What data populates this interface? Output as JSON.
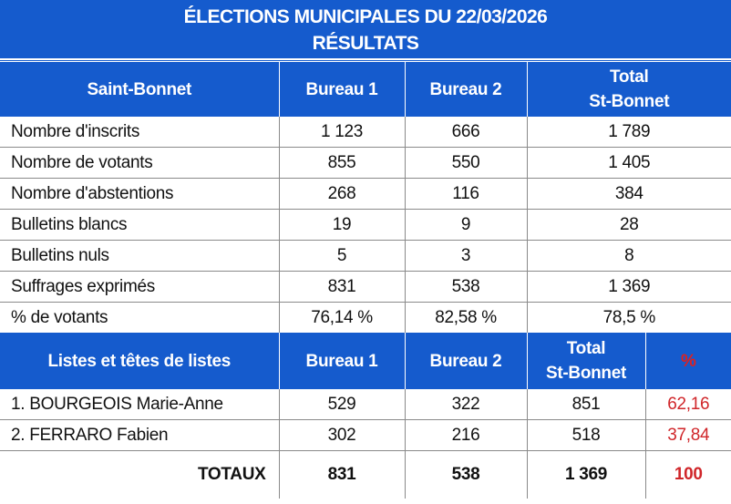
{
  "title": {
    "line1": "ÉLECTIONS MUNICIPALES DU 22/03/2026",
    "line2": "RÉSULTATS"
  },
  "colors": {
    "header_bg": "#155bcd",
    "percent_red": "#d0262a"
  },
  "summary": {
    "headers": [
      "Saint-Bonnet",
      "Bureau 1",
      "Bureau 2",
      "Total",
      "St-Bonnet"
    ],
    "rows": [
      {
        "label": "Nombre d'inscrits",
        "b1": "1 123",
        "b2": "666",
        "total": "1 789"
      },
      {
        "label": "Nombre de votants",
        "b1": "855",
        "b2": "550",
        "total": "1 405"
      },
      {
        "label": "Nombre d'abstentions",
        "b1": "268",
        "b2": "116",
        "total": "384"
      },
      {
        "label": "Bulletins blancs",
        "b1": "19",
        "b2": "9",
        "total": "28"
      },
      {
        "label": "Bulletins nuls",
        "b1": "5",
        "b2": "3",
        "total": "8"
      },
      {
        "label": "Suffrages exprimés",
        "b1": "831",
        "b2": "538",
        "total": "1 369"
      },
      {
        "label": "% de votants",
        "b1": "76,14 %",
        "b2": "82,58 %",
        "total": "78,5 %"
      }
    ]
  },
  "lists": {
    "headers": [
      "Listes et têtes de listes",
      "Bureau 1",
      "Bureau 2",
      "Total",
      "St-Bonnet",
      "%"
    ],
    "rows": [
      {
        "label": "1.  BOURGEOIS Marie-Anne",
        "b1": "529",
        "b2": "322",
        "total": "851",
        "pct": "62,16"
      },
      {
        "label": "2.  FERRARO Fabien",
        "b1": "302",
        "b2": "216",
        "total": "518",
        "pct": "37,84"
      }
    ],
    "totals": {
      "label": "TOTAUX",
      "b1": "831",
      "b2": "538",
      "total": "1 369",
      "pct": "100"
    }
  }
}
